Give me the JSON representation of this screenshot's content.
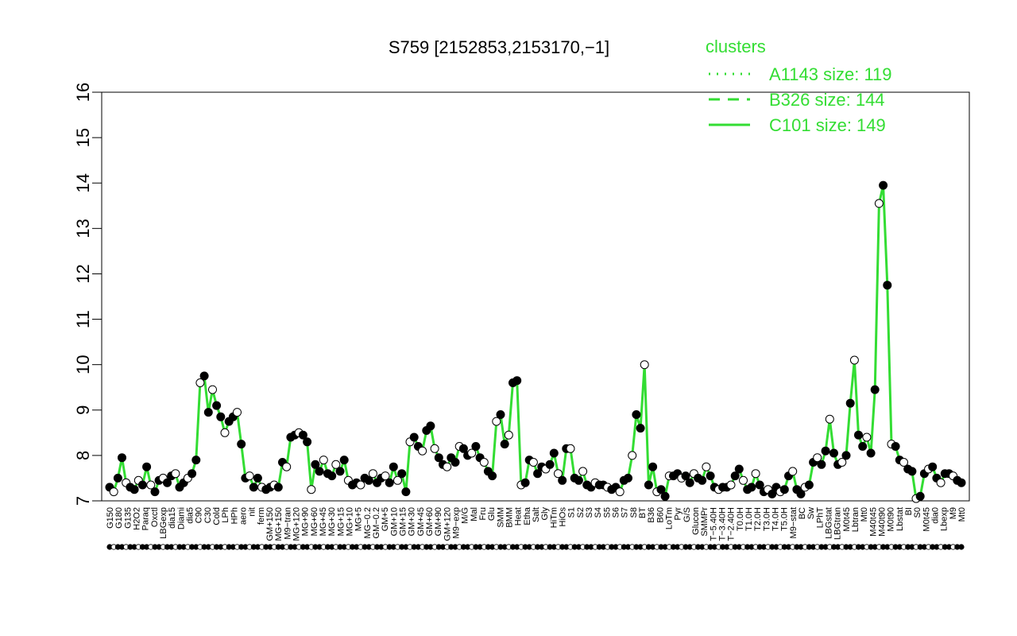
{
  "chart_data": {
    "type": "line",
    "title": "S759 [2152853,2153170,−1]",
    "xlabel": "",
    "ylabel": "",
    "ylim": [
      7,
      16
    ],
    "yticks": [
      7,
      8,
      9,
      10,
      11,
      12,
      13,
      14,
      15,
      16
    ],
    "line_color": "#33dd33",
    "legend": {
      "title": "clusters",
      "placement": "top-right",
      "color": "#33dd33",
      "entries": [
        {
          "label": "A1143 size: 119",
          "style": "dotted"
        },
        {
          "label": "B326 size: 144",
          "style": "dashed"
        },
        {
          "label": "C101 size: 149",
          "style": "solid"
        }
      ]
    },
    "x_tick_labels": [
      "G150",
      "G180",
      "G135",
      "H2O2",
      "Paraq",
      "Oxctl",
      "LBGexp",
      "dia15",
      "Diami",
      "dia5",
      "C90",
      "C30",
      "Cold",
      "LPh",
      "HPh",
      "aero",
      "nit",
      "ferm",
      "GM+150",
      "MG+150",
      "M9−tran",
      "MG+120",
      "MG+90",
      "MG+60",
      "MG+45",
      "MG+30",
      "MG+15",
      "MG+10",
      "MG+5",
      "MG−0.2",
      "GM−0.2",
      "GM+5",
      "GM+10",
      "GM+15",
      "GM+30",
      "GM+45",
      "GM+60",
      "GM+90",
      "GM+120",
      "M9−exp",
      "M/G",
      "Mal",
      "Fru",
      "Glu",
      "SMM",
      "BMM",
      "Heat",
      "Etha",
      "Salt",
      "Gly",
      "HiTm",
      "HiOs",
      "S1",
      "S2",
      "S3",
      "S4",
      "S5",
      "S6",
      "S7",
      "S8",
      "BT",
      "B36",
      "B60",
      "LoTm",
      "Pyr",
      "G/S",
      "Glucon",
      "SMMPr",
      "T−5.40H",
      "T−3.40H",
      "T−2.40H",
      "T0.0H",
      "T1.0H",
      "T2.0H",
      "T3.0H",
      "T4.0H",
      "T5.0H",
      "M9−stat",
      "BC",
      "Sw",
      "LPhT",
      "LBGstat",
      "LBGtran",
      "M0t45",
      "Lbtran",
      "Mt0",
      "M40t45",
      "M40t90",
      "M0t90",
      "Lbstat",
      "BI",
      "S0",
      "M0t45",
      "dia0",
      "Lbexp",
      "M9",
      "Mt0"
    ],
    "series": [
      {
        "name": "",
        "values": [
          7.3,
          7.2,
          7.5,
          7.95,
          7.4,
          7.3,
          7.25,
          7.45,
          7.35,
          7.75,
          7.35,
          7.2,
          7.45,
          7.5,
          7.4,
          7.55,
          7.6,
          7.3,
          7.4,
          7.5,
          7.6,
          7.9,
          9.6,
          9.75,
          8.95,
          9.45,
          9.1,
          8.85,
          8.5,
          8.75,
          8.85,
          8.95,
          8.25,
          7.5,
          7.55,
          7.3,
          7.5,
          7.3,
          7.25,
          7.3,
          7.35,
          7.3,
          7.85,
          7.75,
          8.4,
          8.45,
          8.5,
          8.45,
          8.3,
          7.25,
          7.8,
          7.65,
          7.9,
          7.6,
          7.55,
          7.8,
          7.65,
          7.9,
          7.45,
          7.35,
          7.4,
          7.35,
          7.5,
          7.45,
          7.6,
          7.4,
          7.5,
          7.55,
          7.4,
          7.75,
          7.45,
          7.6,
          7.2,
          8.3,
          8.4,
          8.2,
          8.1,
          8.55,
          8.65,
          8.15,
          7.95,
          7.8,
          7.75,
          7.95,
          7.85,
          8.2,
          8.15,
          8.0,
          8.05,
          8.2,
          7.95,
          7.85,
          7.65,
          7.55,
          8.75,
          8.9,
          8.25,
          8.45,
          9.6,
          9.65,
          7.35,
          7.4,
          7.9,
          7.85,
          7.6,
          7.75,
          7.7,
          7.8,
          8.05,
          7.6,
          7.45,
          8.15,
          8.15,
          7.5,
          7.45,
          7.65,
          7.35,
          7.3,
          7.4,
          7.35,
          7.35,
          7.3,
          7.25,
          7.3,
          7.2,
          7.45,
          7.5,
          8.0,
          8.9,
          8.6,
          10.0,
          7.35,
          7.75,
          7.2,
          7.25,
          7.1,
          7.55,
          7.55,
          7.6,
          7.5,
          7.55,
          7.4,
          7.6,
          7.5,
          7.45,
          7.75,
          7.55,
          7.3,
          7.25,
          7.3,
          7.3,
          7.35,
          7.55,
          7.7,
          7.45,
          7.25,
          7.3,
          7.6,
          7.35,
          7.2,
          7.25,
          7.15,
          7.3,
          7.2,
          7.25,
          7.55,
          7.65,
          7.25,
          7.15,
          7.3,
          7.35,
          7.85,
          7.95,
          7.8,
          8.1,
          8.8,
          8.05,
          7.8,
          7.85,
          8.0,
          9.15,
          10.1,
          8.45,
          8.2,
          8.4,
          8.05,
          9.45,
          13.55,
          13.95,
          11.75,
          8.25,
          8.2,
          7.9,
          7.85,
          7.7,
          7.65,
          7.05,
          7.1,
          7.6,
          7.7,
          7.75,
          7.5,
          7.4,
          7.6,
          7.6,
          7.55,
          7.45,
          7.4
        ]
      }
    ]
  }
}
